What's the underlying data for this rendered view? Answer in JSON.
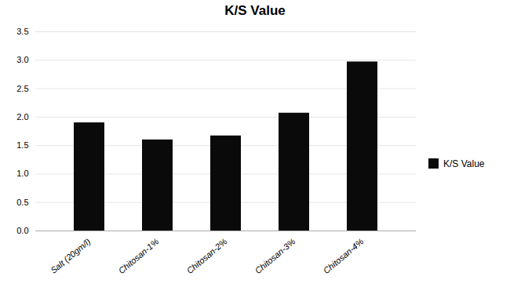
{
  "chart_data": {
    "type": "bar",
    "title": "K/S Value",
    "categories": [
      "Salt (20gm/l)",
      "Chitosan-1%",
      "Chitosan-2%",
      "Chitosan-3%",
      "Chitosan-4%"
    ],
    "series": [
      {
        "name": "K/S Value",
        "color": "#0a0a0a",
        "values": [
          1.9,
          1.6,
          1.67,
          2.07,
          2.97
        ]
      }
    ],
    "ylim": [
      0,
      3.5
    ],
    "yticks": [
      {
        "value": 0,
        "label": "0.0"
      },
      0.5,
      {
        "value": 1.0,
        "label": "1.0"
      },
      1.5,
      {
        "value": 2.0,
        "label": "2.0"
      },
      2.5,
      {
        "value": 3.0,
        "label": "3.0"
      },
      3.5
    ],
    "grid": true,
    "legend": "right"
  }
}
